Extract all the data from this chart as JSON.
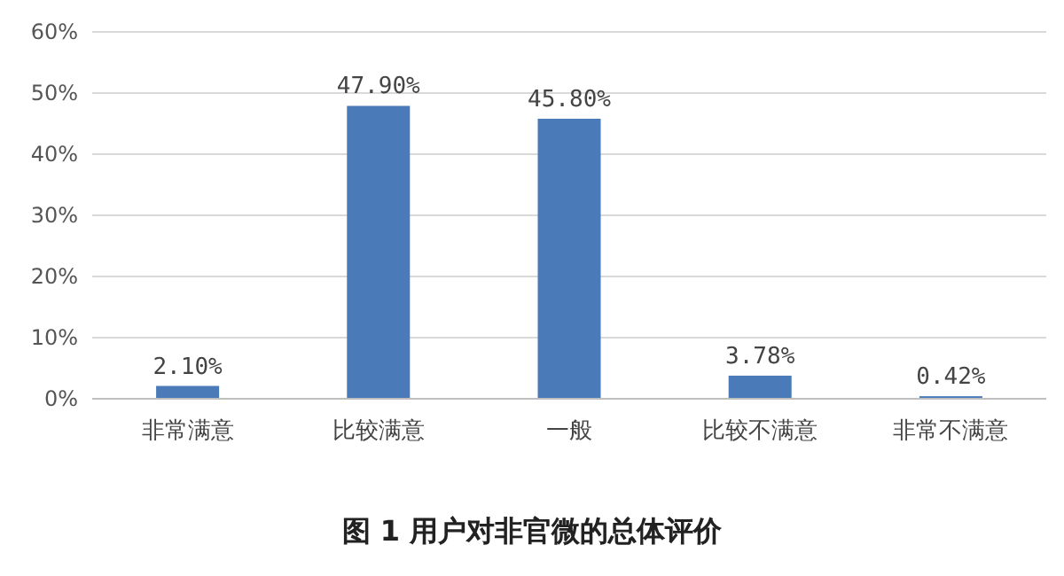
{
  "chart_data": {
    "type": "bar",
    "title": "图 1 用户对非官微的总体评价",
    "categories": [
      "非常满意",
      "比较满意",
      "一般",
      "比较不满意",
      "非常不满意"
    ],
    "values": [
      2.1,
      47.9,
      45.8,
      3.78,
      0.42
    ],
    "value_labels": [
      "2.10%",
      "47.90%",
      "45.80%",
      "3.78%",
      "0.42%"
    ],
    "color": "#4a7ab8",
    "ylim": [
      0,
      60
    ],
    "yticks": [
      {
        "value": 0,
        "label": "0%"
      },
      {
        "value": 10,
        "label": "10%"
      },
      {
        "value": 20,
        "label": "20%"
      },
      {
        "value": 30,
        "label": "30%"
      },
      {
        "value": 40,
        "label": "40%"
      },
      {
        "value": 50,
        "label": "50%"
      },
      {
        "value": 60,
        "label": "60%"
      }
    ],
    "grid": "y"
  }
}
